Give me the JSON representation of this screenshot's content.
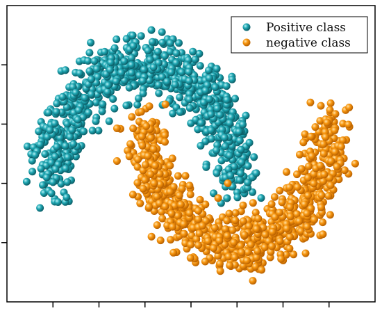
{
  "chart_data": {
    "type": "scatter",
    "title": "",
    "xlabel": "",
    "ylabel": "",
    "xlim": [
      -1.5,
      2.5
    ],
    "ylim": [
      -1.0,
      1.5
    ],
    "grid": false,
    "legend_position": "top-right",
    "series": [
      {
        "name": "Positive class",
        "color": "#1a9aa6",
        "shape": "upper-moon",
        "center": [
          0.0,
          0.0
        ],
        "radius": 1.0,
        "noise": 0.12,
        "count": 900
      },
      {
        "name": "negative class",
        "color": "#f5920f",
        "shape": "lower-moon",
        "center": [
          1.0,
          0.5
        ],
        "radius": 1.0,
        "noise": 0.12,
        "count": 900
      }
    ]
  }
}
